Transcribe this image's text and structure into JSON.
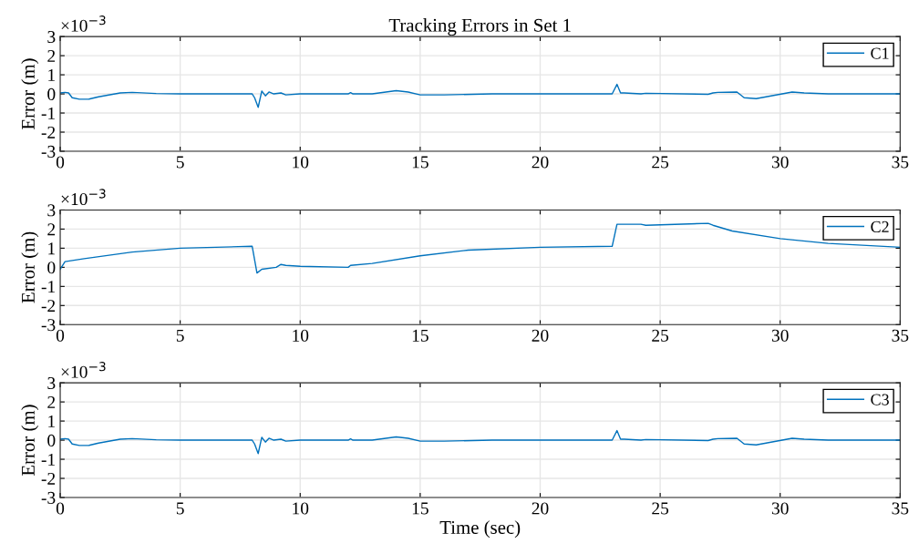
{
  "chart_data": [
    {
      "type": "line",
      "title": "Tracking Errors in Set 1",
      "ylabel": "Error (m)",
      "annotations": [
        "×10$^{−3}$"
      ],
      "xlim": [
        0,
        35
      ],
      "ylim": [
        -3,
        3
      ],
      "xticks": [
        0,
        5,
        10,
        15,
        20,
        25,
        30,
        35
      ],
      "yticks": [
        -3,
        -2,
        -1,
        0,
        1,
        2,
        3
      ],
      "grid": true,
      "legend": "top right",
      "series": [
        {
          "name": "C1",
          "color": "#0072bd",
          "x": [
            0,
            0.2,
            0.35,
            0.5,
            0.8,
            1.2,
            1.6,
            2.5,
            3.0,
            4,
            5,
            8.0,
            8.1,
            8.25,
            8.4,
            8.55,
            8.7,
            8.9,
            9.2,
            9.4,
            10,
            12,
            12.1,
            12.2,
            13,
            14,
            14.5,
            15,
            16,
            18,
            23.0,
            23.2,
            23.35,
            23.5,
            24.2,
            24.4,
            27,
            27.2,
            27.4,
            28.2,
            28.5,
            29,
            30.5,
            31,
            32,
            35
          ],
          "values": [
            0.05,
            0.08,
            0.05,
            -0.2,
            -0.28,
            -0.27,
            -0.15,
            0.05,
            0.08,
            0.02,
            0,
            0,
            -0.2,
            -0.7,
            0.15,
            -0.1,
            0.1,
            0,
            0.05,
            -0.05,
            0,
            0,
            0.07,
            0,
            0,
            0.17,
            0.1,
            -0.05,
            -0.05,
            0,
            0,
            0.5,
            0.05,
            0.05,
            0,
            0.03,
            -0.02,
            0.05,
            0.08,
            0.1,
            -0.2,
            -0.25,
            0.1,
            0.05,
            0,
            0
          ]
        }
      ]
    },
    {
      "type": "line",
      "ylabel": "Error (m)",
      "annotations": [
        "×10$^{−3}$"
      ],
      "xlim": [
        0,
        35
      ],
      "ylim": [
        -3,
        3
      ],
      "xticks": [
        0,
        5,
        10,
        15,
        20,
        25,
        30,
        35
      ],
      "yticks": [
        -3,
        -2,
        -1,
        0,
        1,
        2,
        3
      ],
      "grid": true,
      "legend": "top right",
      "series": [
        {
          "name": "C2",
          "color": "#0072bd",
          "x": [
            0,
            0.2,
            1,
            3,
            5,
            8.0,
            8.2,
            8.4,
            9,
            9.2,
            9.4,
            10,
            12,
            12.1,
            13,
            15,
            17,
            20,
            23.0,
            23.2,
            24.2,
            24.4,
            27,
            27.2,
            28,
            30,
            32,
            35
          ],
          "values": [
            -0.1,
            0.3,
            0.45,
            0.8,
            1.0,
            1.1,
            -0.3,
            -0.1,
            0,
            0.15,
            0.1,
            0.05,
            0.0,
            0.1,
            0.2,
            0.6,
            0.9,
            1.05,
            1.1,
            2.25,
            2.25,
            2.2,
            2.3,
            2.2,
            1.9,
            1.5,
            1.25,
            1.05
          ]
        }
      ]
    },
    {
      "type": "line",
      "xlabel": "Time (sec)",
      "ylabel": "Error (m)",
      "annotations": [
        "×10$^{−3}$"
      ],
      "xlim": [
        0,
        35
      ],
      "ylim": [
        -3,
        3
      ],
      "xticks": [
        0,
        5,
        10,
        15,
        20,
        25,
        30,
        35
      ],
      "yticks": [
        -3,
        -2,
        -1,
        0,
        1,
        2,
        3
      ],
      "grid": true,
      "legend": "top right",
      "series": [
        {
          "name": "C3",
          "color": "#0072bd",
          "x": [
            0,
            0.2,
            0.35,
            0.5,
            0.8,
            1.2,
            1.6,
            2.5,
            3.0,
            4,
            5,
            8.0,
            8.1,
            8.25,
            8.4,
            8.55,
            8.7,
            8.9,
            9.2,
            9.4,
            10,
            12,
            12.1,
            12.2,
            13,
            14,
            14.5,
            15,
            16,
            18,
            23.0,
            23.2,
            23.35,
            23.5,
            24.2,
            24.4,
            27,
            27.2,
            27.4,
            28.2,
            28.5,
            29,
            30.5,
            31,
            32,
            35
          ],
          "values": [
            0.05,
            0.08,
            0.05,
            -0.2,
            -0.28,
            -0.27,
            -0.15,
            0.05,
            0.08,
            0.02,
            0,
            0,
            -0.2,
            -0.7,
            0.15,
            -0.1,
            0.1,
            0,
            0.05,
            -0.05,
            0,
            0,
            0.07,
            0,
            0,
            0.17,
            0.1,
            -0.05,
            -0.05,
            0,
            0,
            0.5,
            0.05,
            0.05,
            0,
            0.03,
            -0.02,
            0.05,
            0.08,
            0.1,
            -0.2,
            -0.25,
            0.1,
            0.05,
            0,
            0
          ]
        }
      ]
    }
  ]
}
